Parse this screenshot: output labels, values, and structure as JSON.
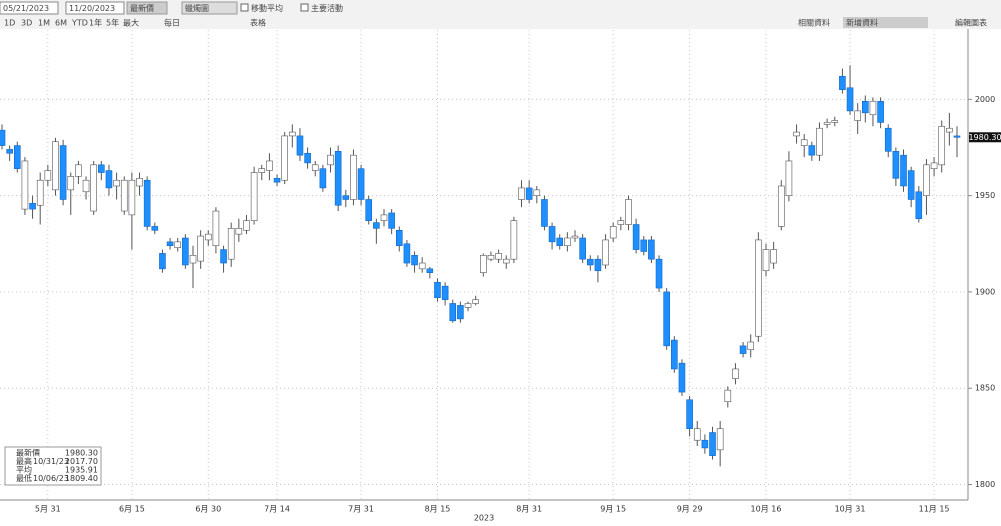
{
  "toolbar": {
    "start_date": "05/21/2023",
    "end_date": "11/20/2023",
    "field": "最新價",
    "chart_style": "蠟燭圖",
    "moving_average": "移動平均",
    "events": "主要活動",
    "ranges": [
      "1D",
      "3D",
      "1M",
      "6M",
      "YTD",
      "1年",
      "5年",
      "最大"
    ],
    "period": "每日",
    "table": "表格",
    "related": "相關資料",
    "add_data": "新增資料",
    "edit": "編輯圖表"
  },
  "chart_data": {
    "type": "candlestick",
    "categories": [
      null,
      null,
      null,
      null,
      null,
      null,
      "5月 31",
      null,
      null,
      null,
      null,
      null,
      null,
      null,
      null,
      null,
      null,
      "6月 15",
      null,
      null,
      null,
      null,
      null,
      null,
      null,
      null,
      null,
      "6月 30",
      null,
      null,
      null,
      null,
      null,
      null,
      null,
      null,
      "7月 14",
      null,
      null,
      null,
      null,
      null,
      null,
      null,
      null,
      null,
      null,
      "7月 31",
      null,
      null,
      null,
      null,
      null,
      null,
      null,
      null,
      null,
      "8月 15",
      null,
      null,
      null,
      null,
      null,
      null,
      null,
      null,
      null,
      null,
      null,
      "8月 31",
      null,
      null,
      null,
      null,
      null,
      null,
      null,
      null,
      null,
      null,
      "9月 15",
      null,
      null,
      null,
      null,
      null,
      null,
      null,
      null,
      null,
      "9月 29",
      null,
      null,
      null,
      null,
      null,
      null,
      null,
      null,
      null,
      "10月 16",
      null,
      null,
      null,
      null,
      null,
      null,
      null,
      null,
      null,
      null,
      "10月 31",
      null,
      null,
      null,
      null,
      null,
      null,
      null,
      null,
      null,
      null,
      "11月 15",
      null,
      null,
      null
    ],
    "year_label": "2023",
    "open": [
      1984,
      1974,
      1976,
      1943,
      1946,
      1945,
      1958,
      1953,
      1976,
      1953,
      1960,
      1952,
      1942,
      1966,
      1963,
      1955,
      1942,
      1940,
      1955,
      1958,
      1934,
      1920,
      1926,
      1923,
      1928,
      1915,
      1916,
      1927,
      1924,
      1922,
      1917,
      1930,
      1932,
      1937,
      1962,
      1963,
      1959,
      1958,
      1981,
      1981,
      1972,
      1963,
      1964,
      1966,
      1973,
      1950,
      1948,
      1964,
      1948,
      1936,
      1937,
      1941,
      1932,
      1925,
      1919,
      1912,
      1912,
      1905,
      1903,
      1894,
      1893,
      1892,
      1894,
      1910,
      1917,
      1917,
      1915,
      1917,
      1948,
      1954,
      1950,
      1948,
      1934,
      1928,
      1924,
      1928,
      1928,
      1917,
      1917,
      1914,
      1928,
      1935,
      1935,
      1935,
      1927,
      1927,
      1917,
      1900,
      1875,
      1863,
      1844,
      1823,
      1823,
      1827,
      1818,
      1843,
      1855,
      1872,
      1870,
      1877,
      1911,
      1915,
      1934,
      1950,
      1981,
      1976,
      1976,
      1971,
      1987,
      1988,
      2012,
      2006,
      1989,
      1999,
      1992,
      1999,
      1985,
      1973,
      1971,
      1963,
      1952,
      1950,
      1964,
      1966,
      1983,
      1981
    ],
    "high": [
      1987,
      1976,
      1978,
      1970,
      1950,
      1962,
      1966,
      1980,
      1979,
      1962,
      1968,
      1960,
      1968,
      1968,
      1966,
      1962,
      1960,
      1962,
      1962,
      1960,
      1936,
      1922,
      1928,
      1928,
      1930,
      1924,
      1932,
      1932,
      1944,
      1924,
      1936,
      1938,
      1940,
      1965,
      1966,
      1972,
      1961,
      1983,
      1987,
      1985,
      1975,
      1968,
      1966,
      1975,
      1976,
      1953,
      1974,
      1966,
      1950,
      1938,
      1943,
      1943,
      1934,
      1927,
      1921,
      1918,
      1913,
      1907,
      1905,
      1896,
      1895,
      1895,
      1898,
      1920,
      1921,
      1922,
      1919,
      1939,
      1958,
      1958,
      1955,
      1950,
      1936,
      1930,
      1931,
      1932,
      1930,
      1919,
      1919,
      1930,
      1936,
      1939,
      1950,
      1938,
      1929,
      1929,
      1919,
      1902,
      1877,
      1865,
      1846,
      1833,
      1826,
      1830,
      1833,
      1851,
      1863,
      1874,
      1878,
      1931,
      1925,
      1926,
      1958,
      1973,
      1987,
      1982,
      1978,
      1988,
      1990,
      1991,
      2016,
      2017.7,
      1998,
      2002,
      2001,
      2001,
      1987,
      1975,
      1974,
      1965,
      1955,
      1969,
      1970,
      1989,
      1993,
      1986
    ],
    "low": [
      1974,
      1968,
      1962,
      1940,
      1938,
      1935,
      1955,
      1950,
      1945,
      1940,
      1956,
      1948,
      1940,
      1958,
      1950,
      1948,
      1940,
      1922,
      1950,
      1932,
      1930,
      1910,
      1922,
      1921,
      1912,
      1902,
      1912,
      1924,
      1920,
      1910,
      1913,
      1926,
      1930,
      1935,
      1958,
      1958,
      1955,
      1956,
      1975,
      1968,
      1964,
      1960,
      1952,
      1962,
      1942,
      1944,
      1945,
      1945,
      1935,
      1925,
      1934,
      1930,
      1921,
      1913,
      1910,
      1910,
      1907,
      1895,
      1893,
      1884,
      1884,
      1890,
      1893,
      1908,
      1916,
      1915,
      1912,
      1915,
      1944,
      1946,
      1946,
      1932,
      1922,
      1922,
      1921,
      1926,
      1915,
      1911,
      1905,
      1912,
      1926,
      1932,
      1932,
      1920,
      1919,
      1915,
      1900,
      1870,
      1858,
      1846,
      1825,
      1820,
      1816,
      1813,
      1809.4,
      1840,
      1852,
      1866,
      1866,
      1874,
      1908,
      1912,
      1932,
      1947,
      1977,
      1970,
      1968,
      1968,
      1985,
      1986,
      2003,
      1992,
      1982,
      1988,
      1986,
      1985,
      1970,
      1955,
      1952,
      1944,
      1936,
      1940,
      1960,
      1962,
      1976,
      1970
    ],
    "close": [
      1976,
      1972,
      1964,
      1968,
      1943,
      1958,
      1963,
      1978,
      1948,
      1960,
      1966,
      1958,
      1966,
      1962,
      1954,
      1958,
      1958,
      1958,
      1959,
      1934,
      1932,
      1912,
      1924,
      1926,
      1914,
      1919,
      1929,
      1930,
      1942,
      1915,
      1933,
      1933,
      1937,
      1962,
      1964,
      1968,
      1957,
      1981,
      1983,
      1971,
      1967,
      1966,
      1954,
      1971,
      1945,
      1948,
      1971,
      1948,
      1937,
      1933,
      1940,
      1933,
      1924,
      1915,
      1914,
      1915,
      1910,
      1897,
      1896,
      1885,
      1886,
      1894,
      1896,
      1919,
      1919,
      1920,
      1917,
      1937,
      1954,
      1948,
      1953,
      1934,
      1926,
      1924,
      1928,
      1929,
      1917,
      1914,
      1911,
      1927,
      1934,
      1937,
      1948,
      1922,
      1921,
      1917,
      1902,
      1872,
      1860,
      1848,
      1829,
      1829,
      1819,
      1815,
      1829,
      1849,
      1860,
      1868,
      1874,
      1927,
      1922,
      1922,
      1955,
      1968,
      1983,
      1979,
      1971,
      1985,
      1988,
      1989,
      2005,
      1994,
      1994,
      1993,
      1999,
      1988,
      1973,
      1959,
      1955,
      1948,
      1938,
      1966,
      1967,
      1986,
      1985,
      1980.3
    ],
    "up_color": "#ffffff",
    "down_color": "#1e8fff",
    "ylim": [
      1793,
      2036
    ],
    "yticks": [
      1800,
      1850,
      1900,
      1950,
      2000
    ],
    "grid": true,
    "last_price": {
      "value": 1980.3,
      "label": "1980.30"
    },
    "legend": [
      {
        "label": "最新價",
        "value": "1980.30"
      },
      {
        "label": "最高",
        "date": "10/31/23",
        "value": "2017.70"
      },
      {
        "label": "平均",
        "value": "1935.91"
      },
      {
        "label": "最低",
        "date": "10/06/23",
        "value": "1809.40"
      }
    ]
  }
}
